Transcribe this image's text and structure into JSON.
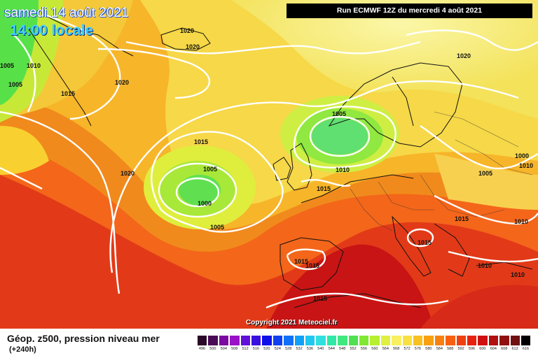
{
  "header": {
    "date": "samedi 14 août 2021",
    "time": "14:00 locale",
    "run": "Run ECMWF 12Z du mercredi 4 août 2021"
  },
  "copyright": "Copyright 2021 Meteociel.fr",
  "legend": {
    "title": "Géop. z500, pression niveau mer",
    "subtitle": "(+240h)",
    "ticks": [
      "496",
      "500",
      "504",
      "508",
      "512",
      "516",
      "520",
      "524",
      "528",
      "532",
      "536",
      "540",
      "544",
      "548",
      "552",
      "556",
      "560",
      "564",
      "568",
      "572",
      "576",
      "580",
      "584",
      "588",
      "592",
      "596",
      "600",
      "604",
      "608",
      "612",
      "616"
    ],
    "colors": [
      "#2a0a28",
      "#4a0a54",
      "#7a0aa0",
      "#9a10c8",
      "#6010d8",
      "#3a10e0",
      "#1010e8",
      "#1040f0",
      "#1070f8",
      "#10a0f8",
      "#20c8f0",
      "#30e0e0",
      "#30e8a8",
      "#40e880",
      "#50e050",
      "#80e830",
      "#b8f030",
      "#e0f040",
      "#f8f060",
      "#f8e040",
      "#f8c020",
      "#f8a010",
      "#f88010",
      "#f86010",
      "#f04010",
      "#e82010",
      "#d01010",
      "#b01010",
      "#901010",
      "#701010",
      "#000000"
    ]
  },
  "isobar_labels": [
    {
      "text": "1020"
    },
    {
      "text": "1020"
    },
    {
      "text": "1020"
    },
    {
      "text": "1020"
    },
    {
      "text": "1020"
    },
    {
      "text": "1015"
    },
    {
      "text": "1015"
    },
    {
      "text": "1015"
    },
    {
      "text": "1015"
    },
    {
      "text": "1015"
    },
    {
      "text": "1015"
    },
    {
      "text": "1015"
    },
    {
      "text": "1015"
    },
    {
      "text": "1010"
    },
    {
      "text": "1010"
    },
    {
      "text": "1010"
    },
    {
      "text": "1010"
    },
    {
      "text": "1010"
    },
    {
      "text": "1005"
    },
    {
      "text": "1005"
    },
    {
      "text": "1005"
    },
    {
      "text": "1005"
    },
    {
      "text": "1005"
    },
    {
      "text": "1005"
    },
    {
      "text": "1000"
    },
    {
      "text": "1000"
    },
    {
      "text": "1010"
    }
  ]
}
